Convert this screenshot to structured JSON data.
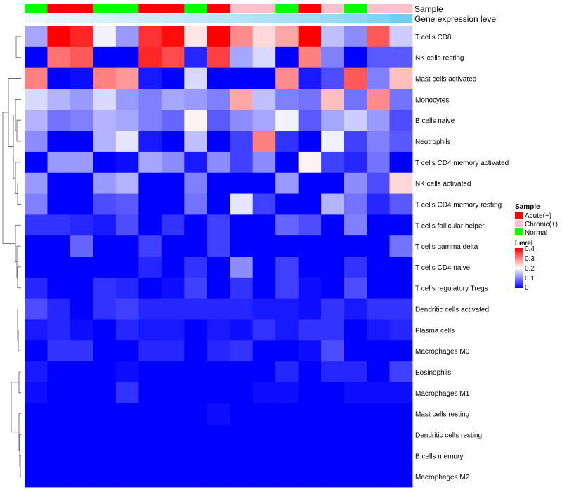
{
  "chart_data": {
    "type": "heatmap",
    "title": "",
    "annotation_tracks": [
      "Sample",
      "Gene expression level"
    ],
    "sample_groups": [
      "Normal",
      "Acute(+)",
      "Acute(+)",
      "Normal",
      "Normal",
      "Acute(+)",
      "Acute(+)",
      "Normal",
      "Acute(+)",
      "Chronic(+)",
      "Chronic(+)",
      "Normal",
      "Acute(+)",
      "Chronic(+)",
      "Normal",
      "Chronic(+)",
      "Chronic(+)"
    ],
    "group_colors": {
      "Acute(+)": "#ff0000",
      "Chronic(+)": "#ffc0cb",
      "Normal": "#00ff00"
    },
    "expression_track": [
      0.02,
      0.06,
      0.1,
      0.14,
      0.18,
      0.22,
      0.26,
      0.3,
      0.34,
      0.38,
      0.42,
      0.46,
      0.5,
      0.56,
      0.62,
      0.7,
      0.8
    ],
    "expression_colors": {
      "low": "#f0f8fc",
      "high": "#4fc3f0"
    },
    "rows": [
      "T cells CD8",
      "NK cells resting",
      "Mast cells activated",
      "Monocytes",
      "B cells naive",
      "Neutrophils",
      "T cells CD4 memory activated",
      "NK cells activated",
      "T cells CD4 memory resting",
      "T cells follicular helper",
      "T cells gamma delta",
      "T cells CD4 naive",
      "T cells regulatory  Tregs",
      "Dendritic cells activated",
      "Plasma cells",
      "Macrophages M0",
      "Eosinophils",
      "Macrophages M1",
      "Mast cells resting",
      "Dendritic cells resting",
      "B cells memory",
      "Macrophages M2"
    ],
    "values": [
      [
        0.13,
        0.4,
        0.37,
        0.19,
        0.12,
        0.36,
        0.39,
        0.22,
        0.4,
        0.29,
        0.23,
        0.27,
        0.4,
        0.15,
        0.11,
        0.33,
        0.16
      ],
      [
        0.0,
        0.31,
        0.33,
        0.0,
        0.0,
        0.37,
        0.34,
        0.03,
        0.35,
        0.13,
        0.17,
        0.0,
        0.3,
        0.1,
        0.0,
        0.07,
        0.07
      ],
      [
        0.3,
        0.0,
        0.01,
        0.3,
        0.28,
        0.02,
        0.0,
        0.17,
        0.0,
        0.0,
        0.0,
        0.29,
        0.02,
        0.06,
        0.33,
        0.1,
        0.25
      ],
      [
        0.17,
        0.14,
        0.12,
        0.17,
        0.12,
        0.1,
        0.13,
        0.12,
        0.1,
        0.27,
        0.15,
        0.1,
        0.09,
        0.25,
        0.09,
        0.29,
        0.09
      ],
      [
        0.14,
        0.09,
        0.1,
        0.14,
        0.13,
        0.1,
        0.08,
        0.21,
        0.07,
        0.11,
        0.13,
        0.19,
        0.07,
        0.13,
        0.16,
        0.12,
        0.06
      ],
      [
        0.11,
        0.0,
        0.0,
        0.14,
        0.18,
        0.02,
        0.0,
        0.15,
        0.0,
        0.05,
        0.3,
        0.04,
        0.0,
        0.19,
        0.05,
        0.1,
        0.07
      ],
      [
        0.0,
        0.12,
        0.12,
        0.0,
        0.01,
        0.13,
        0.11,
        0.02,
        0.11,
        0.05,
        0.11,
        0.0,
        0.21,
        0.05,
        0.03,
        0.09,
        0.0
      ],
      [
        0.12,
        0.0,
        0.0,
        0.12,
        0.14,
        0.0,
        0.0,
        0.1,
        0.0,
        0.0,
        0.0,
        0.12,
        0.0,
        0.0,
        0.11,
        0.06,
        0.23
      ],
      [
        0.1,
        0.0,
        0.0,
        0.06,
        0.07,
        0.0,
        0.0,
        0.09,
        0.0,
        0.18,
        0.05,
        0.0,
        0.0,
        0.14,
        0.09,
        0.03,
        0.07
      ],
      [
        0.04,
        0.04,
        0.03,
        0.02,
        0.06,
        0.0,
        0.04,
        0.0,
        0.05,
        0.0,
        0.0,
        0.08,
        0.06,
        0.0,
        0.1,
        0.0,
        0.0
      ],
      [
        0.0,
        0.0,
        0.08,
        0.0,
        0.0,
        0.05,
        0.0,
        0.0,
        0.05,
        0.0,
        0.0,
        0.0,
        0.0,
        0.0,
        0.0,
        0.0,
        0.09
      ],
      [
        0.0,
        0.0,
        0.0,
        0.0,
        0.0,
        0.03,
        0.0,
        0.04,
        0.0,
        0.11,
        0.0,
        0.05,
        0.0,
        0.0,
        0.04,
        0.0,
        0.0
      ],
      [
        0.03,
        0.0,
        0.0,
        0.04,
        0.03,
        0.0,
        0.01,
        0.05,
        0.0,
        0.04,
        0.0,
        0.05,
        0.01,
        0.0,
        0.06,
        0.0,
        0.0
      ],
      [
        0.06,
        0.03,
        0.0,
        0.04,
        0.05,
        0.03,
        0.03,
        0.03,
        0.03,
        0.03,
        0.02,
        0.02,
        0.01,
        0.04,
        0.02,
        0.04,
        0.04
      ],
      [
        0.02,
        0.03,
        0.01,
        0.0,
        0.03,
        0.02,
        0.02,
        0.0,
        0.02,
        0.01,
        0.04,
        0.02,
        0.04,
        0.04,
        0.0,
        0.02,
        0.03
      ],
      [
        0.0,
        0.04,
        0.04,
        0.0,
        0.0,
        0.03,
        0.03,
        0.0,
        0.03,
        0.04,
        0.0,
        0.0,
        0.01,
        0.06,
        0.0,
        0.0,
        0.0
      ],
      [
        0.02,
        0.0,
        0.0,
        0.0,
        0.01,
        0.0,
        0.0,
        0.0,
        0.0,
        0.0,
        0.0,
        0.03,
        0.0,
        0.03,
        0.03,
        0.0,
        0.05
      ],
      [
        0.01,
        0.0,
        0.0,
        0.0,
        0.04,
        0.0,
        0.0,
        0.0,
        0.0,
        0.0,
        0.01,
        0.01,
        0.0,
        0.0,
        0.01,
        0.01,
        0.01
      ],
      [
        0.0,
        0.0,
        0.0,
        0.0,
        0.0,
        0.0,
        0.0,
        0.0,
        0.01,
        0.0,
        0.0,
        0.0,
        0.0,
        0.0,
        0.0,
        0.0,
        0.0
      ],
      [
        0.0,
        0.0,
        0.0,
        0.0,
        0.0,
        0.0,
        0.0,
        0.0,
        0.0,
        0.0,
        0.0,
        0.0,
        0.0,
        0.0,
        0.0,
        0.0,
        0.0
      ],
      [
        0.0,
        0.0,
        0.0,
        0.0,
        0.0,
        0.0,
        0.0,
        0.0,
        0.0,
        0.0,
        0.0,
        0.0,
        0.0,
        0.0,
        0.0,
        0.0,
        0.0
      ],
      [
        0.0,
        0.0,
        0.0,
        0.0,
        0.0,
        0.0,
        0.0,
        0.0,
        0.0,
        0.0,
        0.0,
        0.0,
        0.0,
        0.0,
        0.0,
        0.0,
        0.0
      ]
    ],
    "color_scale": {
      "min": 0,
      "max": 0.4,
      "colors": [
        "#0000ff",
        "#ffffff",
        "#ff0000"
      ]
    },
    "legend_sample": {
      "title": "Sample",
      "entries": [
        "Acute(+)",
        "Chronic(+)",
        "Normal"
      ]
    },
    "legend_level": {
      "title": "Level",
      "ticks": [
        "0.4",
        "0.3",
        "0.2",
        "0.1",
        "0"
      ]
    },
    "dendrogram": "rows"
  }
}
